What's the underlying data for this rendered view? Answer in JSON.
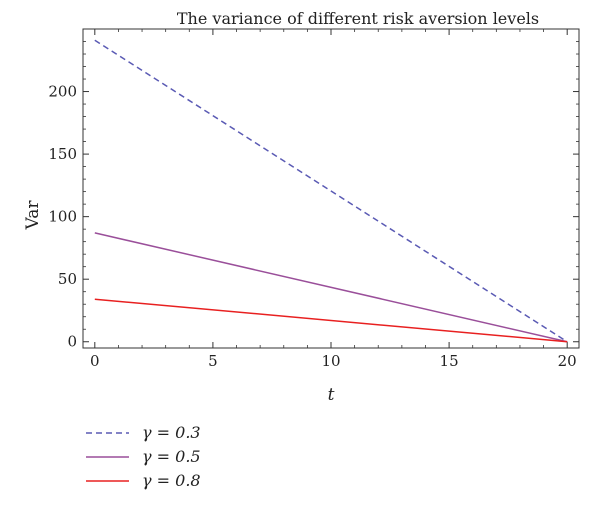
{
  "chart_data": {
    "type": "line",
    "title": "The variance of different risk aversion levels",
    "xlabel": "t",
    "ylabel": "Var",
    "xlim": [
      -0.5,
      20.5
    ],
    "ylim": [
      -5,
      250
    ],
    "xticks": [
      0,
      5,
      10,
      15,
      20
    ],
    "yticks": [
      0,
      50,
      100,
      150,
      200
    ],
    "grid": false,
    "legend_position": "bottom-left",
    "series": [
      {
        "name": "γ = 0.3",
        "x": [
          0,
          20
        ],
        "y": [
          241,
          0
        ],
        "color": "#5a5ab4",
        "style": "dashed"
      },
      {
        "name": "γ = 0.5",
        "x": [
          0,
          20
        ],
        "y": [
          87,
          0
        ],
        "color": "#9a4f9a",
        "style": "solid"
      },
      {
        "name": "γ = 0.8",
        "x": [
          0,
          20
        ],
        "y": [
          34,
          0
        ],
        "color": "#e82020",
        "style": "solid"
      }
    ]
  }
}
